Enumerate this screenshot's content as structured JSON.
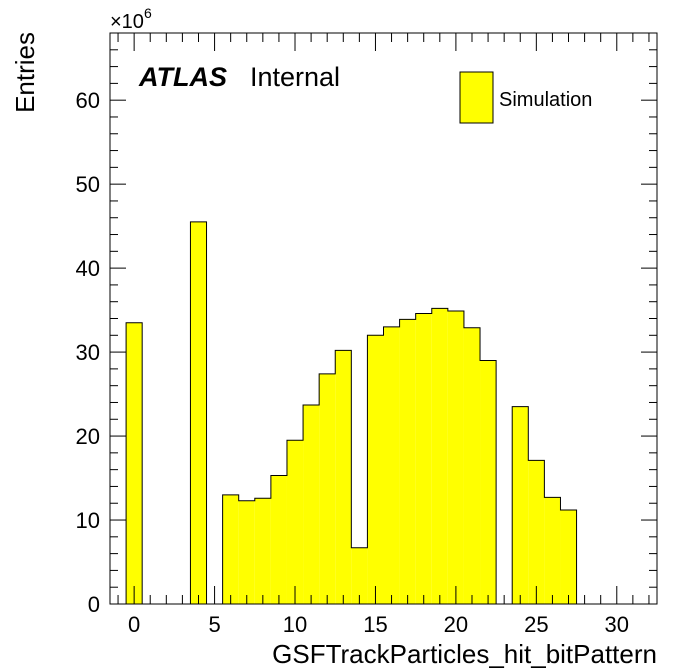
{
  "chart_data": {
    "type": "bar",
    "title": "",
    "xlabel": "GSFTrackParticles_hit_bitPattern",
    "ylabel": "Entries",
    "y_multiplier_label": "×10",
    "y_multiplier_exponent": "6",
    "atlas_label": "ATLAS",
    "atlas_sublabel": "Internal",
    "legend": {
      "entries": [
        "Simulation"
      ],
      "placement": "top-right"
    },
    "xlim": [
      -1.5,
      32.5
    ],
    "ylim": [
      0,
      68
    ],
    "x_ticks": [
      0,
      5,
      10,
      15,
      20,
      25,
      30
    ],
    "x_tick_labels": [
      "0",
      "5",
      "10",
      "15",
      "20",
      "25",
      "30"
    ],
    "y_ticks": [
      0,
      10,
      20,
      30,
      40,
      50,
      60
    ],
    "y_tick_labels": [
      "0",
      "10",
      "20",
      "30",
      "40",
      "50",
      "60"
    ],
    "bin_width": 1,
    "x": [
      0,
      1,
      2,
      3,
      4,
      5,
      6,
      7,
      8,
      9,
      10,
      11,
      12,
      13,
      14,
      15,
      16,
      17,
      18,
      19,
      20,
      21,
      22,
      23,
      24,
      25,
      26,
      27,
      28,
      29,
      30,
      31
    ],
    "values": [
      33.5,
      0,
      0,
      0,
      45.5,
      0,
      13.0,
      12.3,
      12.6,
      15.3,
      19.5,
      23.7,
      27.4,
      30.2,
      6.7,
      32.0,
      33.0,
      33.9,
      34.6,
      35.2,
      34.9,
      32.9,
      29.0,
      0,
      23.5,
      17.1,
      12.7,
      11.2,
      0,
      0,
      0,
      0
    ],
    "fill_color": "#ffff00",
    "line_color": "#000000",
    "grid": false
  }
}
